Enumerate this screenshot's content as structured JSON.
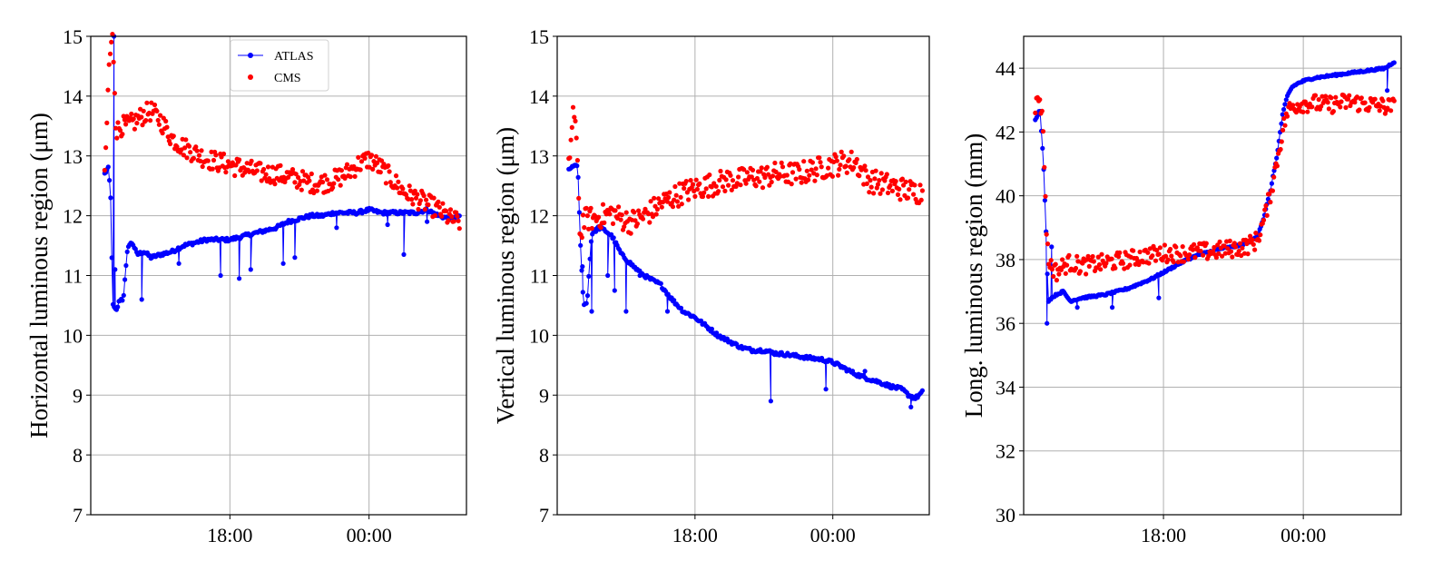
{
  "colors": {
    "atlas": "#0000ff",
    "cms": "#ff0000",
    "grid": "#b0b0b0"
  },
  "chart_data": [
    {
      "type": "line",
      "xlabel": "",
      "ylabel": "Horizontal luminous region (μm)",
      "xaxis": {
        "unit": "hours",
        "range": [
          12.0,
          28.2
        ],
        "ticks": [
          18,
          24
        ],
        "tick_labels": [
          "18:00",
          "00:00"
        ]
      },
      "ylim": [
        7,
        15
      ],
      "yticks": [
        7,
        8,
        9,
        10,
        11,
        12,
        13,
        14,
        15
      ],
      "grid": true,
      "legend": {
        "position": "top-center",
        "entries": [
          "ATLAS",
          "CMS"
        ]
      },
      "series": [
        {
          "name": "ATLAS",
          "style": "line-markers",
          "x": [
            12.6,
            12.75,
            12.85,
            12.95,
            13.1,
            13.25,
            13.4,
            13.6,
            13.8,
            14.0,
            14.3,
            14.6,
            15.0,
            15.5,
            16.0,
            16.5,
            17.0,
            17.5,
            18.0,
            18.5,
            19.0,
            19.5,
            20.0,
            20.5,
            21.0,
            21.5,
            22.0,
            22.5,
            23.0,
            23.5,
            24.0,
            24.5,
            25.0,
            25.5,
            26.0,
            26.5,
            27.0,
            27.5,
            27.9
          ],
          "y": [
            12.7,
            12.8,
            12.4,
            10.5,
            10.4,
            10.6,
            10.6,
            11.5,
            11.55,
            11.35,
            11.4,
            11.3,
            11.35,
            11.4,
            11.5,
            11.55,
            11.6,
            11.6,
            11.6,
            11.65,
            11.7,
            11.75,
            11.8,
            11.9,
            11.95,
            12.0,
            12.0,
            12.05,
            12.05,
            12.05,
            12.1,
            12.05,
            12.05,
            12.05,
            12.05,
            12.1,
            12.0,
            11.95,
            12.0
          ],
          "spikes": [
            [
              13.0,
              15.0
            ],
            [
              13.05,
              11.1
            ],
            [
              14.2,
              10.6
            ],
            [
              15.8,
              11.2
            ],
            [
              17.6,
              11.0
            ],
            [
              18.4,
              10.95
            ],
            [
              18.9,
              11.1
            ],
            [
              20.3,
              11.2
            ],
            [
              20.8,
              11.3
            ],
            [
              22.6,
              11.8
            ],
            [
              24.8,
              11.85
            ],
            [
              25.5,
              11.35
            ],
            [
              26.5,
              11.9
            ]
          ]
        },
        {
          "name": "CMS",
          "style": "markers",
          "x": [
            12.6,
            12.8,
            12.95,
            13.1,
            13.3,
            13.6,
            14.0,
            14.3,
            14.6,
            15.0,
            15.5,
            16.0,
            16.5,
            17.0,
            17.5,
            18.0,
            18.5,
            19.0,
            19.5,
            20.0,
            20.5,
            21.0,
            21.5,
            22.0,
            22.5,
            23.0,
            23.5,
            24.0,
            24.5,
            25.0,
            25.5,
            26.0,
            26.5,
            27.0,
            27.5,
            27.9
          ],
          "y": [
            12.6,
            14.6,
            15.0,
            13.4,
            13.5,
            13.5,
            13.6,
            13.7,
            13.75,
            13.6,
            13.3,
            13.15,
            13.05,
            12.95,
            12.9,
            12.85,
            12.8,
            12.75,
            12.7,
            12.7,
            12.65,
            12.6,
            12.55,
            12.55,
            12.6,
            12.7,
            12.85,
            12.95,
            12.8,
            12.6,
            12.4,
            12.3,
            12.2,
            12.1,
            11.95,
            11.9
          ],
          "spread": 0.17
        }
      ]
    },
    {
      "type": "line",
      "xlabel": "",
      "ylabel": "Vertical luminous region (μm)",
      "xaxis": {
        "unit": "hours",
        "range": [
          12.0,
          28.2
        ],
        "ticks": [
          18,
          24
        ],
        "tick_labels": [
          "18:00",
          "00:00"
        ]
      },
      "ylim": [
        7,
        15
      ],
      "yticks": [
        7,
        8,
        9,
        10,
        11,
        12,
        13,
        14,
        15
      ],
      "grid": true,
      "series": [
        {
          "name": "ATLAS",
          "style": "line-markers",
          "x": [
            12.5,
            12.7,
            12.9,
            13.0,
            13.15,
            13.3,
            13.5,
            13.8,
            14.1,
            14.4,
            14.8,
            15.2,
            15.6,
            16.0,
            16.5,
            17.0,
            17.5,
            18.0,
            18.5,
            19.0,
            19.5,
            20.0,
            20.5,
            21.0,
            21.5,
            22.0,
            22.5,
            23.0,
            23.5,
            24.0,
            24.5,
            25.0,
            25.5,
            26.0,
            26.5,
            27.0,
            27.3,
            27.6,
            27.9
          ],
          "y": [
            12.75,
            12.85,
            12.8,
            11.6,
            10.5,
            10.55,
            11.7,
            11.8,
            11.75,
            11.65,
            11.35,
            11.2,
            11.05,
            10.95,
            10.85,
            10.6,
            10.4,
            10.3,
            10.15,
            10.0,
            9.9,
            9.8,
            9.75,
            9.75,
            9.7,
            9.68,
            9.65,
            9.62,
            9.6,
            9.55,
            9.45,
            9.35,
            9.28,
            9.22,
            9.15,
            9.1,
            9.0,
            8.95,
            9.05
          ],
          "spikes": [
            [
              13.1,
              11.15
            ],
            [
              13.5,
              10.4
            ],
            [
              14.2,
              11.0
            ],
            [
              14.5,
              10.75
            ],
            [
              15.0,
              10.4
            ],
            [
              15.6,
              11.0
            ],
            [
              16.8,
              10.4
            ],
            [
              21.3,
              8.9
            ],
            [
              23.7,
              9.1
            ],
            [
              25.4,
              9.4
            ],
            [
              27.4,
              8.8
            ]
          ]
        },
        {
          "name": "CMS",
          "style": "markers",
          "x": [
            12.5,
            12.7,
            12.9,
            13.0,
            13.1,
            13.3,
            13.6,
            14.0,
            14.4,
            14.8,
            15.2,
            15.6,
            16.0,
            16.5,
            17.0,
            17.5,
            18.0,
            18.5,
            19.0,
            19.5,
            20.0,
            20.5,
            21.0,
            21.5,
            22.0,
            22.5,
            23.0,
            23.5,
            24.0,
            24.5,
            25.0,
            25.5,
            26.0,
            26.5,
            27.0,
            27.5,
            27.9
          ],
          "y": [
            12.8,
            13.8,
            12.9,
            11.5,
            11.9,
            11.95,
            11.95,
            12.0,
            12.05,
            11.95,
            11.9,
            11.95,
            12.05,
            12.2,
            12.3,
            12.4,
            12.45,
            12.5,
            12.55,
            12.6,
            12.6,
            12.65,
            12.65,
            12.7,
            12.7,
            12.7,
            12.75,
            12.8,
            12.85,
            12.9,
            12.9,
            12.6,
            12.55,
            12.5,
            12.45,
            12.4,
            12.4
          ],
          "spread": 0.2
        }
      ]
    },
    {
      "type": "line",
      "xlabel": "",
      "ylabel": "Long. luminous region (mm)",
      "xaxis": {
        "unit": "hours",
        "range": [
          12.0,
          28.2
        ],
        "ticks": [
          18,
          24
        ],
        "tick_labels": [
          "18:00",
          "00:00"
        ]
      },
      "ylim": [
        30,
        45
      ],
      "yticks": [
        30,
        32,
        34,
        36,
        38,
        40,
        42,
        44
      ],
      "grid": true,
      "series": [
        {
          "name": "ATLAS",
          "style": "line-markers",
          "x": [
            12.5,
            12.7,
            12.85,
            12.95,
            13.05,
            13.2,
            13.4,
            13.7,
            14.0,
            14.5,
            15.0,
            15.5,
            16.0,
            16.5,
            17.0,
            17.5,
            18.0,
            18.5,
            19.0,
            19.5,
            20.0,
            20.5,
            21.0,
            21.5,
            22.0,
            22.3,
            22.6,
            22.9,
            23.1,
            23.3,
            23.5,
            23.7,
            24.0,
            24.5,
            25.0,
            25.5,
            26.0,
            26.5,
            27.0,
            27.5,
            27.9
          ],
          "y": [
            42.4,
            42.7,
            41.0,
            39.2,
            36.7,
            36.8,
            36.9,
            37.0,
            36.7,
            36.8,
            36.85,
            36.9,
            37.0,
            37.1,
            37.25,
            37.4,
            37.6,
            37.8,
            38.0,
            38.15,
            38.25,
            38.35,
            38.4,
            38.5,
            38.7,
            39.3,
            40.2,
            41.4,
            42.5,
            43.1,
            43.4,
            43.5,
            43.6,
            43.7,
            43.75,
            43.8,
            43.85,
            43.9,
            43.95,
            44.0,
            44.2
          ],
          "spikes": [
            [
              13.0,
              36.0
            ],
            [
              13.2,
              38.4
            ],
            [
              14.3,
              36.5
            ],
            [
              15.8,
              36.5
            ],
            [
              17.8,
              36.8
            ],
            [
              27.6,
              43.3
            ]
          ]
        },
        {
          "name": "CMS",
          "style": "markers",
          "x": [
            12.5,
            12.7,
            12.85,
            12.95,
            13.05,
            13.2,
            13.4,
            13.7,
            14.0,
            14.5,
            15.0,
            15.5,
            16.0,
            16.5,
            17.0,
            17.5,
            18.0,
            18.5,
            19.0,
            19.5,
            20.0,
            20.5,
            21.0,
            21.5,
            22.0,
            22.3,
            22.6,
            22.9,
            23.1,
            23.3,
            23.5,
            23.7,
            24.0,
            24.5,
            25.0,
            25.5,
            26.0,
            26.5,
            27.0,
            27.5,
            27.9
          ],
          "y": [
            42.8,
            43.1,
            42.0,
            39.5,
            38.0,
            37.8,
            37.6,
            37.8,
            37.9,
            37.8,
            37.85,
            37.9,
            37.95,
            38.0,
            38.1,
            38.15,
            38.2,
            38.2,
            38.2,
            38.25,
            38.25,
            38.3,
            38.35,
            38.4,
            38.6,
            39.2,
            40.1,
            41.2,
            42.0,
            42.6,
            42.8,
            42.85,
            42.9,
            42.9,
            42.85,
            42.9,
            42.95,
            42.9,
            42.85,
            42.8,
            42.8
          ],
          "spread": 0.28
        }
      ]
    }
  ]
}
